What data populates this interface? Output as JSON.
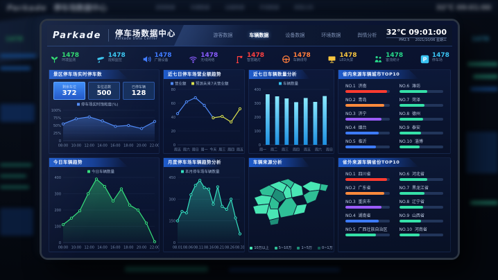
{
  "screen": {
    "header": {
      "logo": "Parkade",
      "title": "停车场数据中心",
      "subtitle": "Parkade Data Center",
      "nav": [
        {
          "label": "游客数据",
          "active": false
        },
        {
          "label": "车辆数据",
          "active": true
        },
        {
          "label": "设备数据",
          "active": false
        },
        {
          "label": "环境数据",
          "active": false
        },
        {
          "label": "舆情分析",
          "active": false
        }
      ],
      "temp": "32℃",
      "time": "09:01:00",
      "pm": "PM2.5",
      "date": "2021/10/06 星期三"
    },
    "stats": {
      "items": [
        {
          "value": "1478",
          "label": "环境监测",
          "color": "#2bd96d",
          "icon": "seedling-icon"
        },
        {
          "value": "1478",
          "label": "视频监控",
          "color": "#38c5f0",
          "icon": "cctv-icon"
        },
        {
          "value": "1478",
          "label": "广播设备",
          "color": "#3f7bff",
          "icon": "speaker-icon"
        },
        {
          "value": "1478",
          "label": "无线网络",
          "color": "#8a5cff",
          "icon": "wifi-icon"
        },
        {
          "value": "1478",
          "label": "智慧路灯",
          "color": "#ff4040",
          "icon": "streetlight-icon"
        },
        {
          "value": "1478",
          "label": "车辆诱导",
          "color": "#ff7e3c",
          "icon": "steering-wheel-icon"
        },
        {
          "value": "1478",
          "label": "LED大屏",
          "color": "#f7c53f",
          "icon": "led-screen-icon"
        },
        {
          "value": "1478",
          "label": "客流统计",
          "color": "#27d98a",
          "icon": "visitors-icon"
        },
        {
          "value": "1478",
          "label": "停车场",
          "color": "#39c3f2",
          "icon": "parking-icon"
        }
      ]
    },
    "panels": {
      "p1": {
        "title": "景区停车场实时停车数",
        "boxes": [
          {
            "label": "剩余车位",
            "value": "372"
          },
          {
            "label": "车位总数",
            "value": "500"
          },
          {
            "label": "已停车辆",
            "value": "128"
          }
        ]
      },
      "p2": {
        "title": "近七日停车场营业额趋势"
      },
      "p3": {
        "title": "近七日车辆数量分析"
      },
      "p4": {
        "title": "省内来源车辆城市TOP10",
        "items": [
          {
            "no": "NO.1",
            "name": "济南",
            "color": "#ff3b30",
            "pct": 95
          },
          {
            "no": "NO.2",
            "name": "青岛",
            "color": "#ff8a3c",
            "pct": 88
          },
          {
            "no": "NO.3",
            "name": "济宁",
            "color": "#9b5cff",
            "pct": 82
          },
          {
            "no": "NO.4",
            "name": "烟台",
            "color": "#3d7bfd",
            "pct": 76
          },
          {
            "no": "NO.5",
            "name": "临沂",
            "color": "#3d7bfd",
            "pct": 70
          },
          {
            "no": "NO.6",
            "name": "潍坊",
            "color": "#35e0a8",
            "pct": 64
          },
          {
            "no": "NO.7",
            "name": "菏泽",
            "color": "#35e0a8",
            "pct": 58
          },
          {
            "no": "NO.8",
            "name": "德州",
            "color": "#35e0a8",
            "pct": 54
          },
          {
            "no": "NO.9",
            "name": "泰安",
            "color": "#35e0a8",
            "pct": 50
          },
          {
            "no": "NO.10",
            "name": "淄博",
            "color": "#35e0a8",
            "pct": 46
          }
        ]
      },
      "p5": {
        "title": "今日车辆趋势"
      },
      "p6": {
        "title": "月度停车场车辆趋势分析"
      },
      "p7": {
        "title": "车辆来源分析",
        "legend": [
          {
            "label": "10万以上",
            "color": "#49e6b4"
          },
          {
            "label": "5~10万",
            "color": "#2fbf96"
          },
          {
            "label": "1~5万",
            "color": "#1e8f78"
          },
          {
            "label": "0~1万",
            "color": "#135c54"
          }
        ]
      },
      "p8": {
        "title": "省外来源车辆省份TOP10",
        "items": [
          {
            "no": "NO.1",
            "name": "四川省",
            "color": "#ff3b30",
            "pct": 95
          },
          {
            "no": "NO.2",
            "name": "广东省",
            "color": "#ff8a3c",
            "pct": 88
          },
          {
            "no": "NO.3",
            "name": "重庆市",
            "color": "#9b5cff",
            "pct": 82
          },
          {
            "no": "NO.4",
            "name": "湖南省",
            "color": "#3d7bfd",
            "pct": 76
          },
          {
            "no": "NO.5",
            "name": "广西壮族自治区",
            "color": "#35e0a8",
            "pct": 70
          },
          {
            "no": "NO.6",
            "name": "河北省",
            "color": "#35e0a8",
            "pct": 64
          },
          {
            "no": "NO.7",
            "name": "黑龙江省",
            "color": "#35e0a8",
            "pct": 58
          },
          {
            "no": "NO.8",
            "name": "辽宁省",
            "color": "#35e0a8",
            "pct": 54
          },
          {
            "no": "NO.9",
            "name": "山西省",
            "color": "#35e0a8",
            "pct": 50
          },
          {
            "no": "NO.10",
            "name": "河南省",
            "color": "#35e0a8",
            "pct": 46
          }
        ]
      }
    }
  },
  "chart_data": [
    {
      "id": "saturation",
      "type": "line",
      "title": "景区停车场实时停车数",
      "legend": [
        {
          "name": "停车场实时饱和度(%)",
          "color": "#4f8af8"
        }
      ],
      "x": [
        "08:00",
        "10:00",
        "12:00",
        "14:00",
        "16:00",
        "18:00",
        "20:00",
        "22:00"
      ],
      "series": [
        {
          "name": "停车场实时饱和度(%)",
          "color": "#4f8af8",
          "values": [
            55,
            72,
            78,
            65,
            47,
            50,
            40,
            63
          ]
        }
      ],
      "ylim": [
        0,
        100
      ],
      "yticks": [
        "0",
        "25%",
        "50%",
        "75%",
        "100%"
      ],
      "area": true
    },
    {
      "id": "weekly-revenue",
      "type": "line",
      "title": "近七日停车场营业额趋势",
      "legend": [
        {
          "name": "营业额",
          "color": "#4f8af8"
        },
        {
          "name": "预测未来7天营业额",
          "color": "#d9e04f"
        }
      ],
      "x": [
        "周五",
        "周六",
        "周日",
        "周一",
        "今天",
        "周三",
        "周四",
        "周五"
      ],
      "series": [
        {
          "name": "营业额",
          "color": "#4f8af8",
          "values": [
            45,
            62,
            68,
            57,
            39,
            null,
            null,
            null
          ]
        },
        {
          "name": "预测未来7天营业额",
          "color": "#d9e04f",
          "values": [
            null,
            null,
            null,
            null,
            39,
            41,
            33,
            52
          ]
        }
      ],
      "ylim": [
        0,
        80
      ],
      "yticks": [
        "0",
        "20",
        "40",
        "60",
        "80"
      ],
      "area": false
    },
    {
      "id": "weekly-count",
      "type": "bar",
      "title": "近七日车辆数量分析",
      "legend": [
        {
          "name": "车辆数量",
          "color": "#35c1f1"
        }
      ],
      "x": [
        "周一",
        "周二",
        "周三",
        "周四",
        "周五",
        "周六",
        "周日"
      ],
      "series": [
        {
          "name": "车辆数量",
          "color": "#35c1f1",
          "values": [
            365,
            350,
            335,
            308,
            338,
            310,
            352
          ]
        }
      ],
      "ylim": [
        0,
        400
      ],
      "yticks": [
        "0",
        "100",
        "200",
        "300",
        "400"
      ]
    },
    {
      "id": "today-trend",
      "type": "area",
      "title": "今日车辆趋势",
      "legend": [
        {
          "name": "今日车辆数量",
          "color": "#35e07c"
        }
      ],
      "x": [
        "08:00",
        "10:00",
        "12:00",
        "14:00",
        "16:00",
        "18:00",
        "20:00",
        "22:00"
      ],
      "series": [
        {
          "name": "今日车辆数量",
          "color": "#35e07c",
          "values": [
            110,
            150,
            195,
            300,
            390,
            345,
            255,
            330,
            230,
            200,
            120,
            5
          ]
        }
      ],
      "ylim": [
        0,
        400
      ],
      "yticks": [
        "0",
        "100",
        "200",
        "300",
        "400"
      ]
    },
    {
      "id": "monthly-trend",
      "type": "area",
      "title": "月度停车场车辆趋势分析",
      "legend": [
        {
          "name": "本月停车场车辆数量",
          "color": "#35e0c0"
        }
      ],
      "x": [
        "08.01",
        "08.06",
        "08.11",
        "08.16",
        "08.21",
        "08.26",
        "08.31"
      ],
      "series": [
        {
          "name": "本月停车场车辆数量",
          "color": "#35e0c0",
          "values": [
            150,
            215,
            205,
            330,
            395,
            430,
            380,
            370,
            265,
            385,
            250,
            230,
            300,
            170,
            60
          ]
        }
      ],
      "ylim": [
        0,
        450
      ],
      "yticks": [
        "0",
        "150",
        "300",
        "450"
      ]
    }
  ]
}
